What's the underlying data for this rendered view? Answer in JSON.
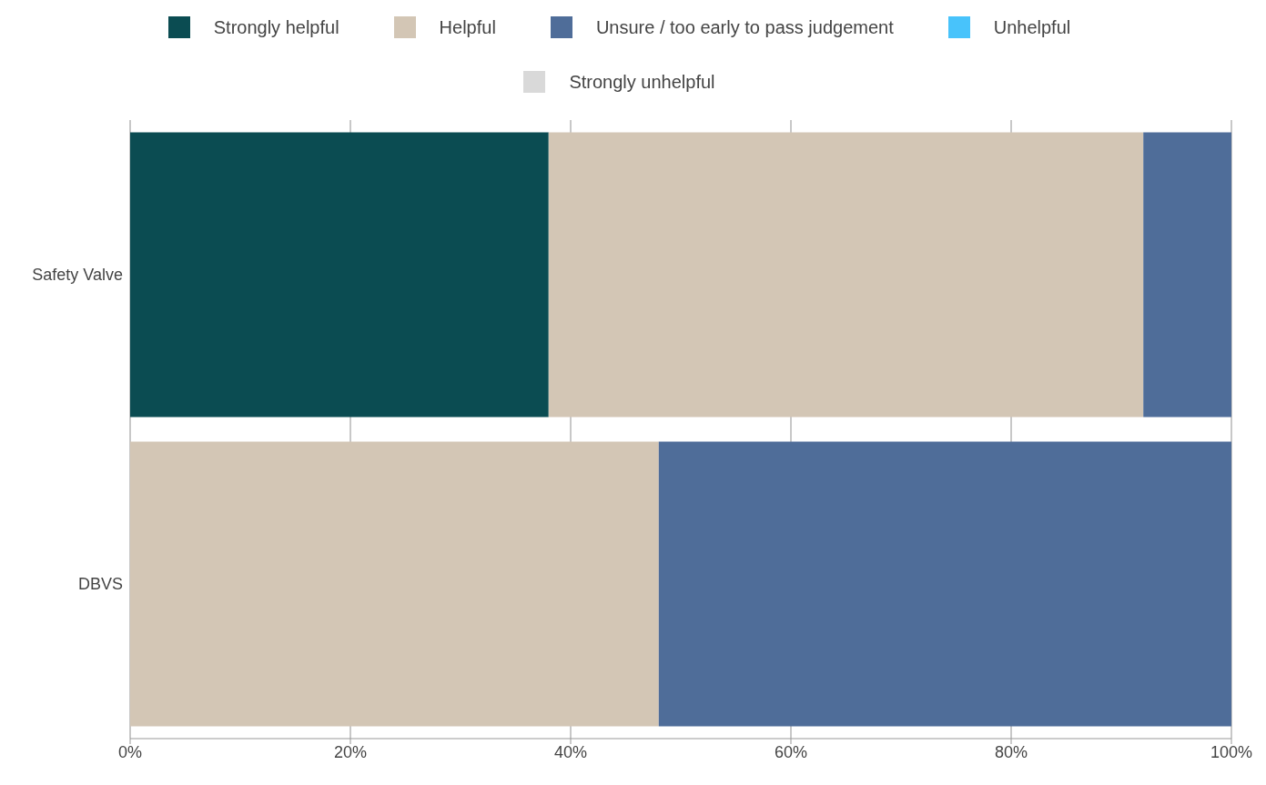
{
  "chart_data": {
    "type": "bar",
    "orientation": "horizontal",
    "stacked": true,
    "categories": [
      "Safety Valve",
      "DBVS"
    ],
    "series": [
      {
        "name": "Strongly helpful",
        "color": "#0b4c52",
        "values": [
          38,
          0
        ]
      },
      {
        "name": "Helpful",
        "color": "#d3c6b5",
        "values": [
          54,
          48
        ]
      },
      {
        "name": "Unsure / too early to pass judgement",
        "color": "#4f6d99",
        "values": [
          8,
          52
        ]
      },
      {
        "name": "Unhelpful",
        "color": "#48c3fb",
        "values": [
          0,
          0
        ]
      },
      {
        "name": "Strongly unhelpful",
        "color": "#d9d9d9",
        "values": [
          0,
          0
        ]
      }
    ],
    "xlim": [
      0,
      100
    ],
    "xticks": [
      {
        "value": 0,
        "label": "0%"
      },
      {
        "value": 20,
        "label": "20%"
      },
      {
        "value": 40,
        "label": "40%"
      },
      {
        "value": 60,
        "label": "60%"
      },
      {
        "value": 80,
        "label": "80%"
      },
      {
        "value": 100,
        "label": "100%"
      }
    ],
    "grid": "x",
    "legend": "top"
  }
}
